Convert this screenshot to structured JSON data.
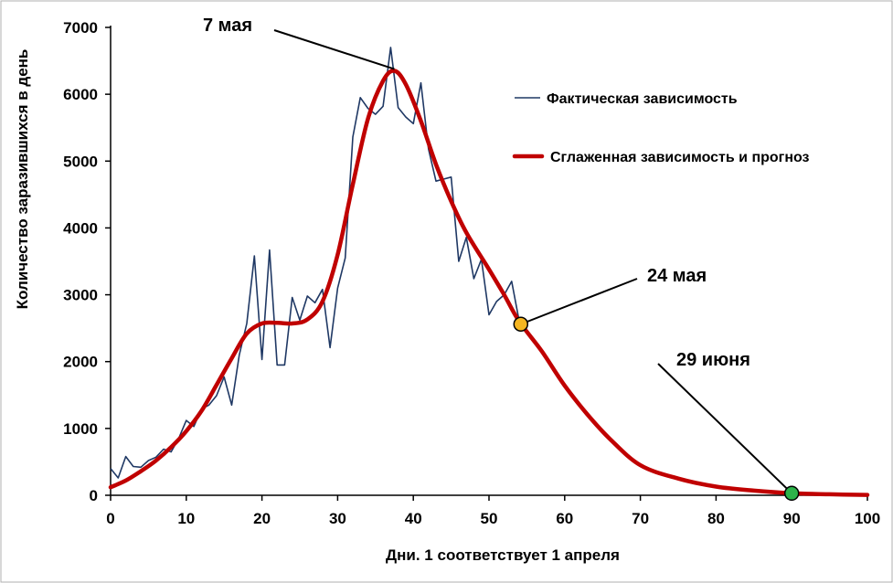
{
  "chart_data": {
    "type": "line",
    "title": "",
    "xlabel": "Дни. 1 соответствует 1 апреля",
    "ylabel": "Количество заразившихся в день",
    "xlim": [
      0,
      100
    ],
    "ylim": [
      0,
      7000
    ],
    "x_ticks": [
      "0",
      "10",
      "20",
      "30",
      "40",
      "50",
      "60",
      "70",
      "80",
      "90",
      "100"
    ],
    "y_ticks": [
      "0",
      "1000",
      "2000",
      "3000",
      "4000",
      "5000",
      "6000",
      "7000"
    ],
    "grid": false,
    "legend_position": "right",
    "colors": {
      "actual": "#1f3864",
      "smoothed": "#c00000",
      "yellow_marker": "#f5b520",
      "green_marker": "#2db34a"
    },
    "series": [
      {
        "name": "Фактическая зависимость",
        "x": [
          0,
          1,
          2,
          3,
          4,
          5,
          6,
          7,
          8,
          9,
          10,
          11,
          12,
          13,
          14,
          15,
          16,
          17,
          18,
          19,
          20,
          21,
          22,
          23,
          24,
          25,
          26,
          27,
          28,
          29,
          30,
          31,
          32,
          33,
          34,
          35,
          36,
          37,
          38,
          39,
          40,
          41,
          42,
          43,
          44,
          45,
          46,
          47,
          48,
          49,
          50,
          51,
          52,
          53,
          54
        ],
        "values": [
          400,
          260,
          580,
          430,
          420,
          520,
          570,
          690,
          650,
          850,
          1120,
          1030,
          1290,
          1350,
          1490,
          1770,
          1350,
          2100,
          2570,
          3580,
          2030,
          3670,
          1950,
          1950,
          2960,
          2620,
          2980,
          2880,
          3080,
          2210,
          3100,
          3550,
          5360,
          5950,
          5790,
          5700,
          5820,
          6700,
          5800,
          5660,
          5560,
          6170,
          5180,
          4700,
          4730,
          4760,
          3500,
          3860,
          3240,
          3530,
          2700,
          2900,
          3000,
          3200,
          2600
        ]
      },
      {
        "name": "Сглаженная зависимость и прогноз",
        "x": [
          0,
          2,
          4,
          6,
          8,
          10,
          12,
          14,
          16,
          18,
          20,
          22,
          24,
          26,
          28,
          30,
          32,
          34,
          36,
          37.5,
          39,
          41,
          43,
          45,
          47,
          50,
          52,
          54,
          57,
          60,
          63,
          66,
          70,
          75,
          80,
          85,
          90,
          95,
          100
        ],
        "values": [
          120,
          220,
          360,
          520,
          720,
          960,
          1260,
          1650,
          2050,
          2420,
          2570,
          2580,
          2570,
          2630,
          2900,
          3600,
          4650,
          5630,
          6200,
          6350,
          6150,
          5600,
          4950,
          4400,
          3930,
          3380,
          3000,
          2600,
          2150,
          1640,
          1210,
          840,
          450,
          250,
          130,
          70,
          30,
          15,
          5
        ]
      }
    ],
    "legend": [
      "Фактическая зависимость",
      "Сглаженная зависимость и прогноз"
    ],
    "annotations": [
      {
        "label": "7 мая",
        "x": 37.5,
        "y": 6350
      },
      {
        "label": "24 мая",
        "x": 54.2,
        "y": 2560
      },
      {
        "label": "29 июня",
        "x": 90,
        "y": 30
      }
    ]
  }
}
